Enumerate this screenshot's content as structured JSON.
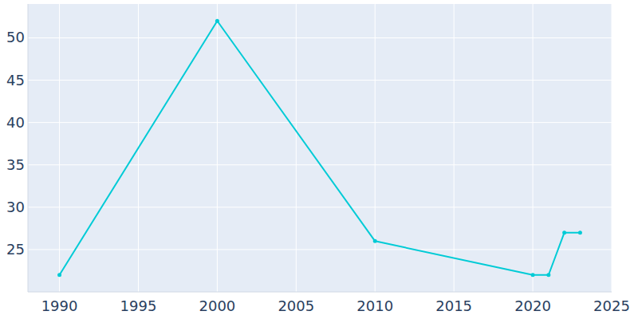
{
  "chart_data": {
    "type": "line",
    "x": [
      1990,
      2000,
      2010,
      2020,
      2021,
      2022,
      2023
    ],
    "values": [
      22,
      52,
      26,
      22,
      22,
      27,
      27
    ],
    "color": "#00cbd6",
    "marker": "circle",
    "xlim": [
      1988,
      2025
    ],
    "xticks": [
      1990,
      1995,
      2000,
      2005,
      2010,
      2015,
      2020,
      2025
    ],
    "ylim": [
      20,
      54
    ],
    "yticks": [
      25,
      30,
      35,
      40,
      45,
      50
    ],
    "grid": true
  }
}
